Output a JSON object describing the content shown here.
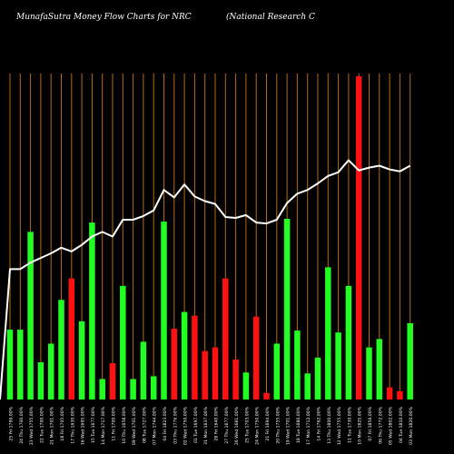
{
  "header": {
    "title": "MunafaSutra  Money Flow  Charts for NRC",
    "company": "(National Research C"
  },
  "colors": {
    "background": "#000000",
    "up": "#22ff22",
    "down": "#ff1111",
    "line": "#ffffff",
    "grid": "#b86a14",
    "text": "#ffffff"
  },
  "chart_data": {
    "type": "bar",
    "title": "MunafaSutra  Money Flow  Charts for NRC",
    "subtitle": "(National Research C",
    "xlabel": "",
    "ylabel": "",
    "grid": true,
    "categories": [
      "25 Fri 1799.00%",
      "24 Thu 1700.00%",
      "23 Wed 1755.00%",
      "22 Tue 1700.00%",
      "21 Mon 1701.00%",
      "18 Fri 1705.00%",
      "17 Thu 1630.00%",
      "16 Wed 1695.00%",
      "15 Tue 1677.00%",
      "14 Mon 1717.00%",
      "11 Fri 1700.00%",
      "10 Thu 1658.00%",
      "09 Wed 1701.00%",
      "08 Tue 1727.00%",
      "07 Mon 1744.00%",
      "04 Fri 1823.00%",
      "03 Thu 1776.00%",
      "02 Wed 1750.00%",
      "01 Tue 1697.00%",
      "31 Mon 1637.00%",
      "28 Fri 1640.00%",
      "27 Thu 1677.00%",
      "26 Wed 1681.00%",
      "25 Tue 1703.00%",
      "24 Mon 1750.00%",
      "21 Fri 1694.00%",
      "20 Thu 1755.00%",
      "19 Wed 1701.00%",
      "18 Tue 1680.00%",
      "17 Mon 1712.00%",
      "14 Fri 1762.00%",
      "13 Thu 1800.00%",
      "12 Wed 1755.00%",
      "11 Tue 1730.00%",
      "10 Mon 1825.00%",
      "07 Fri 1856.00%",
      "06 Thu 1772.00%",
      "05 Wed 1802.00%",
      "04 Tue 1810.00%",
      "03 Mon 1820.00%"
    ],
    "bars": [
      {
        "value": 75,
        "direction": "up"
      },
      {
        "value": 75,
        "direction": "up"
      },
      {
        "value": 180,
        "direction": "up"
      },
      {
        "value": 40,
        "direction": "up"
      },
      {
        "value": 60,
        "direction": "up"
      },
      {
        "value": 107,
        "direction": "up"
      },
      {
        "value": 130,
        "direction": "down"
      },
      {
        "value": 84,
        "direction": "up"
      },
      {
        "value": 190,
        "direction": "up"
      },
      {
        "value": 22,
        "direction": "up"
      },
      {
        "value": 39,
        "direction": "down"
      },
      {
        "value": 122,
        "direction": "up"
      },
      {
        "value": 22,
        "direction": "up"
      },
      {
        "value": 62,
        "direction": "up"
      },
      {
        "value": 25,
        "direction": "up"
      },
      {
        "value": 191,
        "direction": "up"
      },
      {
        "value": 76,
        "direction": "down"
      },
      {
        "value": 94,
        "direction": "up"
      },
      {
        "value": 90,
        "direction": "down"
      },
      {
        "value": 52,
        "direction": "down"
      },
      {
        "value": 56,
        "direction": "down"
      },
      {
        "value": 130,
        "direction": "down"
      },
      {
        "value": 43,
        "direction": "down"
      },
      {
        "value": 29,
        "direction": "up"
      },
      {
        "value": 89,
        "direction": "down"
      },
      {
        "value": 7,
        "direction": "down"
      },
      {
        "value": 60,
        "direction": "up"
      },
      {
        "value": 194,
        "direction": "up"
      },
      {
        "value": 74,
        "direction": "up"
      },
      {
        "value": 28,
        "direction": "up"
      },
      {
        "value": 45,
        "direction": "up"
      },
      {
        "value": 142,
        "direction": "up"
      },
      {
        "value": 72,
        "direction": "up"
      },
      {
        "value": 122,
        "direction": "up"
      },
      {
        "value": 347,
        "direction": "down"
      },
      {
        "value": 56,
        "direction": "up"
      },
      {
        "value": 65,
        "direction": "up"
      },
      {
        "value": 13,
        "direction": "down"
      },
      {
        "value": 9,
        "direction": "down"
      },
      {
        "value": 82,
        "direction": "up"
      }
    ],
    "line_values": [
      140,
      140,
      147,
      152,
      157,
      163,
      159,
      166,
      175,
      180,
      175,
      193,
      193,
      197,
      203,
      225,
      217,
      231,
      218,
      213,
      210,
      196,
      195,
      198,
      190,
      189,
      193,
      211,
      221,
      225,
      232,
      240,
      244,
      257,
      246,
      249,
      251,
      247,
      245,
      251
    ],
    "ylim": [
      0,
      350
    ]
  }
}
